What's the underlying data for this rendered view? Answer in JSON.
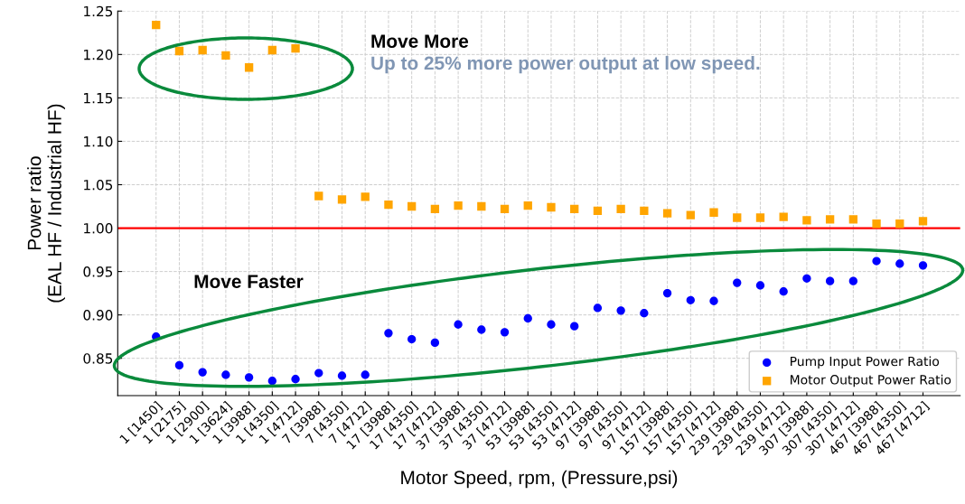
{
  "chart_data": {
    "type": "scatter",
    "xlabel": "Motor Speed, rpm, (Pressure,psi)",
    "ylabel": "Power ratio\n(EAL HF / Industrial HF)",
    "categories": [
      "1 [1450]",
      "1 [2175]",
      "1 [2900]",
      "1 [3624]",
      "1 [3988]",
      "1 [4350]",
      "1 [4712]",
      "7 [3988]",
      "7 [4350]",
      "7 [4712]",
      "17 [3988]",
      "17 [4350]",
      "17 [4712]",
      "37 [3988]",
      "37 [4350]",
      "37 [4712]",
      "53 [3988]",
      "53 [4350]",
      "53 [4712]",
      "97 [3988]",
      "97 [4350]",
      "97 [4712]",
      "157 [3988]",
      "157 [4350]",
      "157 [4712]",
      "239 [3988]",
      "239 [4350]",
      "239 [4712]",
      "307 [3988]",
      "307 [4350]",
      "307 [4712]",
      "467 [3988]",
      "467 [4350]",
      "467 [4712]"
    ],
    "series": [
      {
        "name": "Pump Input Power Ratio",
        "color": "#0000ff",
        "marker": "circle",
        "values": [
          0.875,
          0.842,
          0.834,
          0.831,
          0.828,
          0.824,
          0.826,
          0.833,
          0.83,
          0.831,
          0.879,
          0.872,
          0.868,
          0.889,
          0.883,
          0.88,
          0.896,
          0.889,
          0.887,
          0.908,
          0.905,
          0.902,
          0.925,
          0.917,
          0.916,
          0.937,
          0.934,
          0.927,
          0.942,
          0.939,
          0.939,
          0.962,
          0.959,
          0.957
        ]
      },
      {
        "name": "Motor Output Power Ratio",
        "color": "#ffa500",
        "marker": "square",
        "values": [
          1.234,
          1.204,
          1.205,
          1.199,
          1.185,
          1.205,
          1.207,
          1.037,
          1.033,
          1.036,
          1.027,
          1.025,
          1.022,
          1.026,
          1.025,
          1.022,
          1.026,
          1.024,
          1.022,
          1.02,
          1.022,
          1.02,
          1.017,
          1.015,
          1.018,
          1.012,
          1.012,
          1.013,
          1.009,
          1.01,
          1.01,
          1.005,
          1.005,
          1.008
        ]
      }
    ],
    "ylim": [
      0.807,
      1.25
    ],
    "yticks": [
      {
        "value": 0.85,
        "label": "0.85"
      },
      {
        "value": 0.9,
        "label": "0.90"
      },
      {
        "value": 0.95,
        "label": "0.95"
      },
      {
        "value": 1.0,
        "label": "1.00"
      },
      {
        "value": 1.05,
        "label": "1.05"
      },
      {
        "value": 1.1,
        "label": "1.10"
      },
      {
        "value": 1.15,
        "label": "1.15"
      },
      {
        "value": 1.2,
        "label": "1.20"
      },
      {
        "value": 1.25,
        "label": "1.25"
      }
    ],
    "ref_lines": [
      {
        "axis": "y",
        "value": 1.0,
        "color": "#ff0000"
      }
    ],
    "annotations": [
      "Move More",
      "Up to 25% more power output at low speed.",
      "Move Faster"
    ],
    "grid": true,
    "legend": "bottom right"
  }
}
